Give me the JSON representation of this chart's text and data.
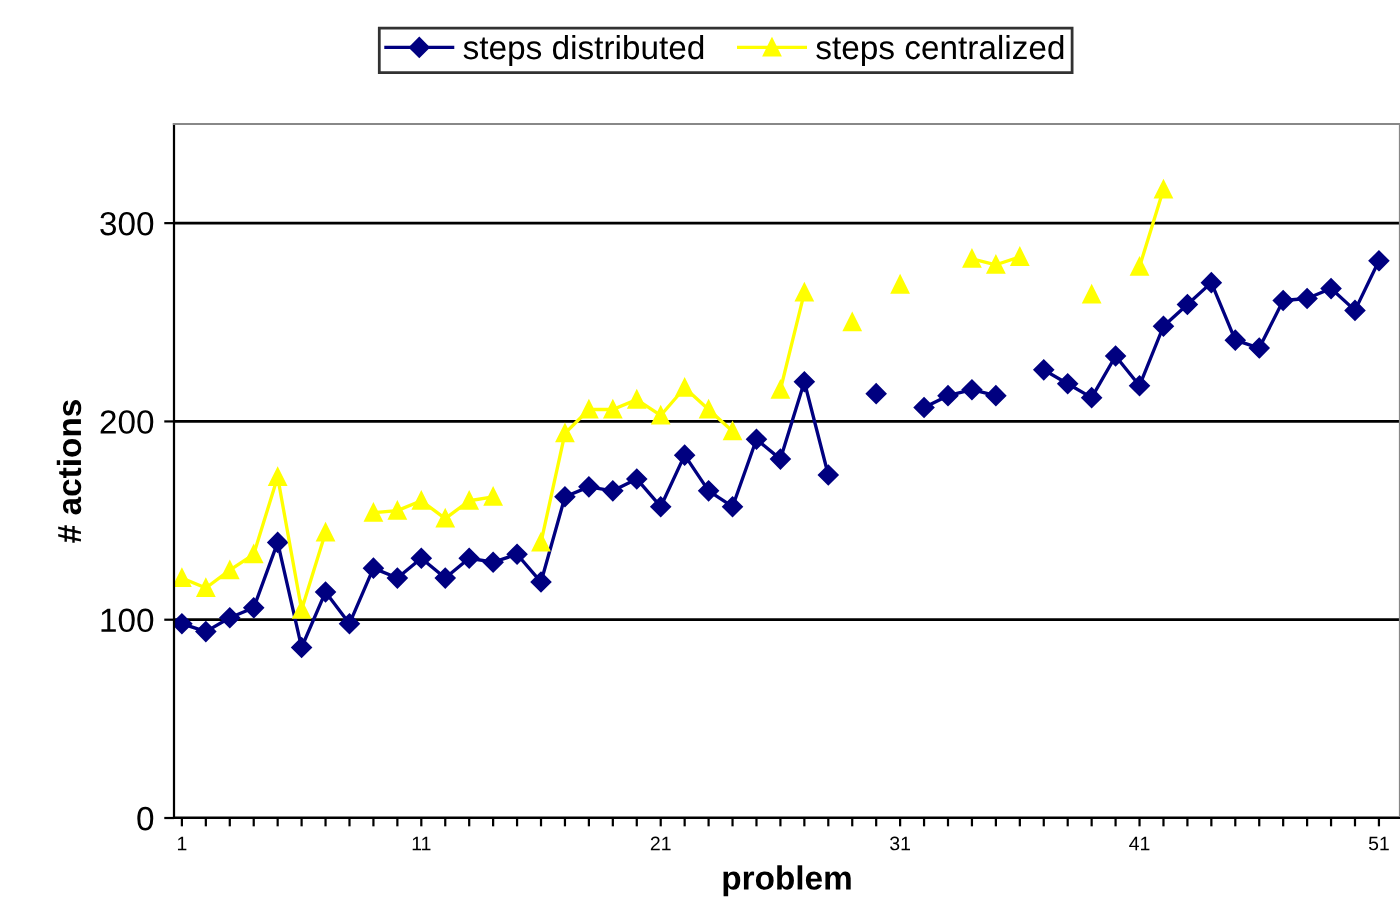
{
  "chart_data": {
    "type": "line",
    "xlabel": "problem",
    "ylabel": "# actions",
    "categories": [
      "1",
      null,
      null,
      null,
      null,
      null,
      null,
      null,
      null,
      null,
      "11",
      null,
      null,
      null,
      null,
      null,
      null,
      null,
      null,
      null,
      "21",
      null,
      null,
      null,
      null,
      null,
      null,
      null,
      null,
      null,
      "31",
      null,
      null,
      null,
      null,
      null,
      null,
      null,
      null,
      null,
      "41",
      null,
      null,
      null,
      null,
      null,
      null,
      null,
      null,
      null,
      "51"
    ],
    "series": [
      {
        "name": "steps distributed",
        "color": "#000080",
        "marker": "diamond",
        "values": [
          98,
          94,
          101,
          106,
          139,
          86,
          114,
          98,
          126,
          121,
          131,
          121,
          131,
          129,
          133,
          119,
          162,
          167,
          165,
          171,
          157,
          183,
          165,
          157,
          191,
          181,
          220,
          173,
          null,
          214,
          null,
          207,
          213,
          216,
          213,
          null,
          226,
          219,
          212,
          233,
          218,
          248,
          259,
          270,
          241,
          237,
          261,
          262,
          267,
          256,
          281
        ]
      },
      {
        "name": "steps centralized",
        "color": "#ffff00",
        "marker": "triangle",
        "values": [
          121,
          116,
          125,
          133,
          172,
          105,
          144,
          null,
          154,
          155,
          160,
          151,
          160,
          162,
          null,
          139,
          194,
          206,
          206,
          211,
          203,
          217,
          206,
          195,
          null,
          216,
          265,
          null,
          250,
          null,
          269,
          null,
          null,
          282,
          279,
          283,
          null,
          null,
          264,
          null,
          278,
          317,
          null,
          null,
          null,
          null,
          null,
          null,
          null,
          null,
          null
        ]
      }
    ],
    "ylim": [
      0,
      350
    ],
    "yticks": [
      0,
      100,
      200,
      300
    ],
    "grid": "y",
    "legend": "top"
  }
}
